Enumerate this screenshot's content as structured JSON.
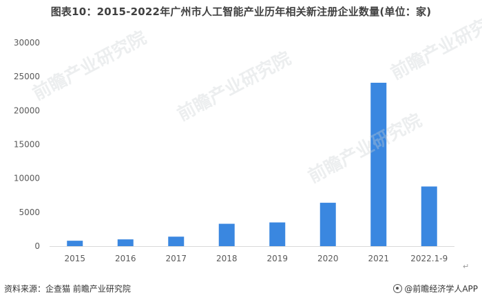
{
  "title": "图表10：2015-2022年广州市人工智能产业历年相关新注册企业数量(单位：家)",
  "footer": {
    "source": "资料来源：企查猫 前瞻产业研究院",
    "brand": "@前瞻经济学人APP"
  },
  "watermark": "前瞻产业研究院",
  "colors": {
    "bar": "#3a87e0",
    "axis": "#d9d9d9",
    "text": "#595959"
  },
  "chart_data": {
    "type": "bar",
    "title": "图表10：2015-2022年广州市人工智能产业历年相关新注册企业数量(单位：家)",
    "xlabel": "",
    "ylabel": "",
    "categories": [
      "2015",
      "2016",
      "2017",
      "2018",
      "2019",
      "2020",
      "2021",
      "2022.1-9"
    ],
    "values": [
      800,
      1000,
      1400,
      3300,
      3500,
      6400,
      24100,
      8800
    ],
    "ylim": [
      0,
      30000
    ],
    "yticks": [
      0,
      5000,
      10000,
      15000,
      20000,
      25000,
      30000
    ],
    "grid": false,
    "legend": "none"
  }
}
